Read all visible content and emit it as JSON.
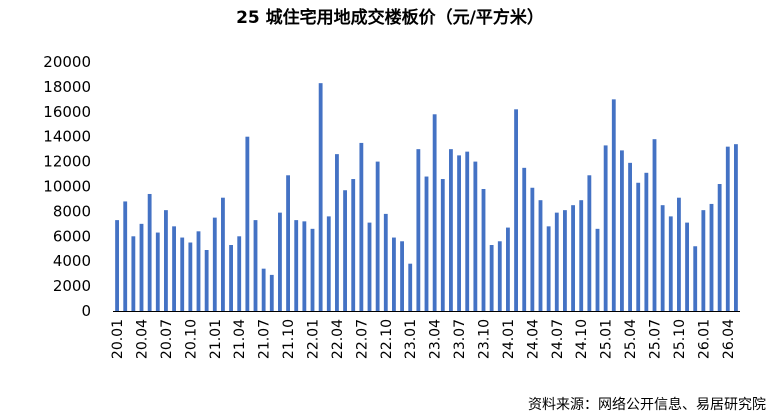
{
  "chart_data": {
    "type": "bar",
    "title": "25 城住宅用地成交楼板价（元/平方米）",
    "xlabel": "",
    "ylabel": "",
    "ylim": [
      0,
      20000
    ],
    "yticks": [
      0,
      2000,
      4000,
      6000,
      8000,
      10000,
      12000,
      14000,
      16000,
      18000,
      20000
    ],
    "grid": false,
    "legend": "none",
    "bar_color": "#4472C4",
    "categories": [
      "20.01",
      "20.02",
      "20.03",
      "20.04",
      "20.05",
      "20.06",
      "20.07",
      "20.08",
      "20.09",
      "20.10",
      "20.11",
      "20.12",
      "21.01",
      "21.02",
      "21.03",
      "21.04",
      "21.05",
      "21.06",
      "21.07",
      "21.08",
      "21.09",
      "21.10",
      "21.11",
      "21.12",
      "22.01",
      "22.02",
      "22.03",
      "22.04",
      "22.05",
      "22.06",
      "22.07",
      "22.08",
      "22.09",
      "22.10",
      "22.11",
      "22.12",
      "23.01",
      "23.02",
      "23.03",
      "23.04",
      "23.05",
      "23.06",
      "23.07",
      "23.08",
      "23.09",
      "23.10",
      "23.11",
      "23.12",
      "24.01",
      "24.02",
      "24.03",
      "24.04",
      "24.05",
      "24.06",
      "24.07",
      "24.08",
      "24.09",
      "24.10",
      "24.11",
      "24.12",
      "25.01",
      "25.02",
      "25.03",
      "25.04",
      "25.05",
      "25.06",
      "25.07",
      "25.08",
      "25.09",
      "25.10",
      "25.11",
      "25.12",
      "26.01",
      "26.02",
      "26.03",
      "26.04",
      "26.05"
    ],
    "x_tick_labels": [
      "20.01",
      "20.04",
      "20.07",
      "20.10",
      "21.01",
      "21.04",
      "21.07",
      "21.10",
      "22.01",
      "22.04",
      "22.07",
      "22.10",
      "23.01",
      "23.04",
      "23.07",
      "23.10",
      "24.01",
      "24.04",
      "24.07",
      "24.10",
      "25.01",
      "25.04",
      "25.07",
      "25.10",
      "26.01",
      "26.04"
    ],
    "values": [
      7300,
      8800,
      6000,
      7000,
      9400,
      6300,
      8100,
      6800,
      5900,
      5500,
      6400,
      4900,
      7500,
      9100,
      5300,
      6000,
      14000,
      7300,
      3400,
      2900,
      7900,
      10900,
      7300,
      7200,
      6600,
      18300,
      7600,
      12600,
      9700,
      10600,
      13500,
      7100,
      12000,
      7800,
      5900,
      5600,
      3800,
      13000,
      10800,
      15800,
      10600,
      13000,
      12500,
      12800,
      12000,
      9800,
      5300,
      5600,
      6700,
      16200,
      11500,
      9900,
      8900,
      6800,
      7900,
      8100,
      8500,
      8900,
      10900,
      6600,
      13300,
      17000,
      12900,
      11900,
      10300,
      11100,
      13800,
      8500,
      7600,
      9100,
      7100,
      5200,
      8100,
      8600,
      10200,
      13200,
      13400
    ]
  },
  "source": "资料来源：网络公开信息、易居研究院"
}
